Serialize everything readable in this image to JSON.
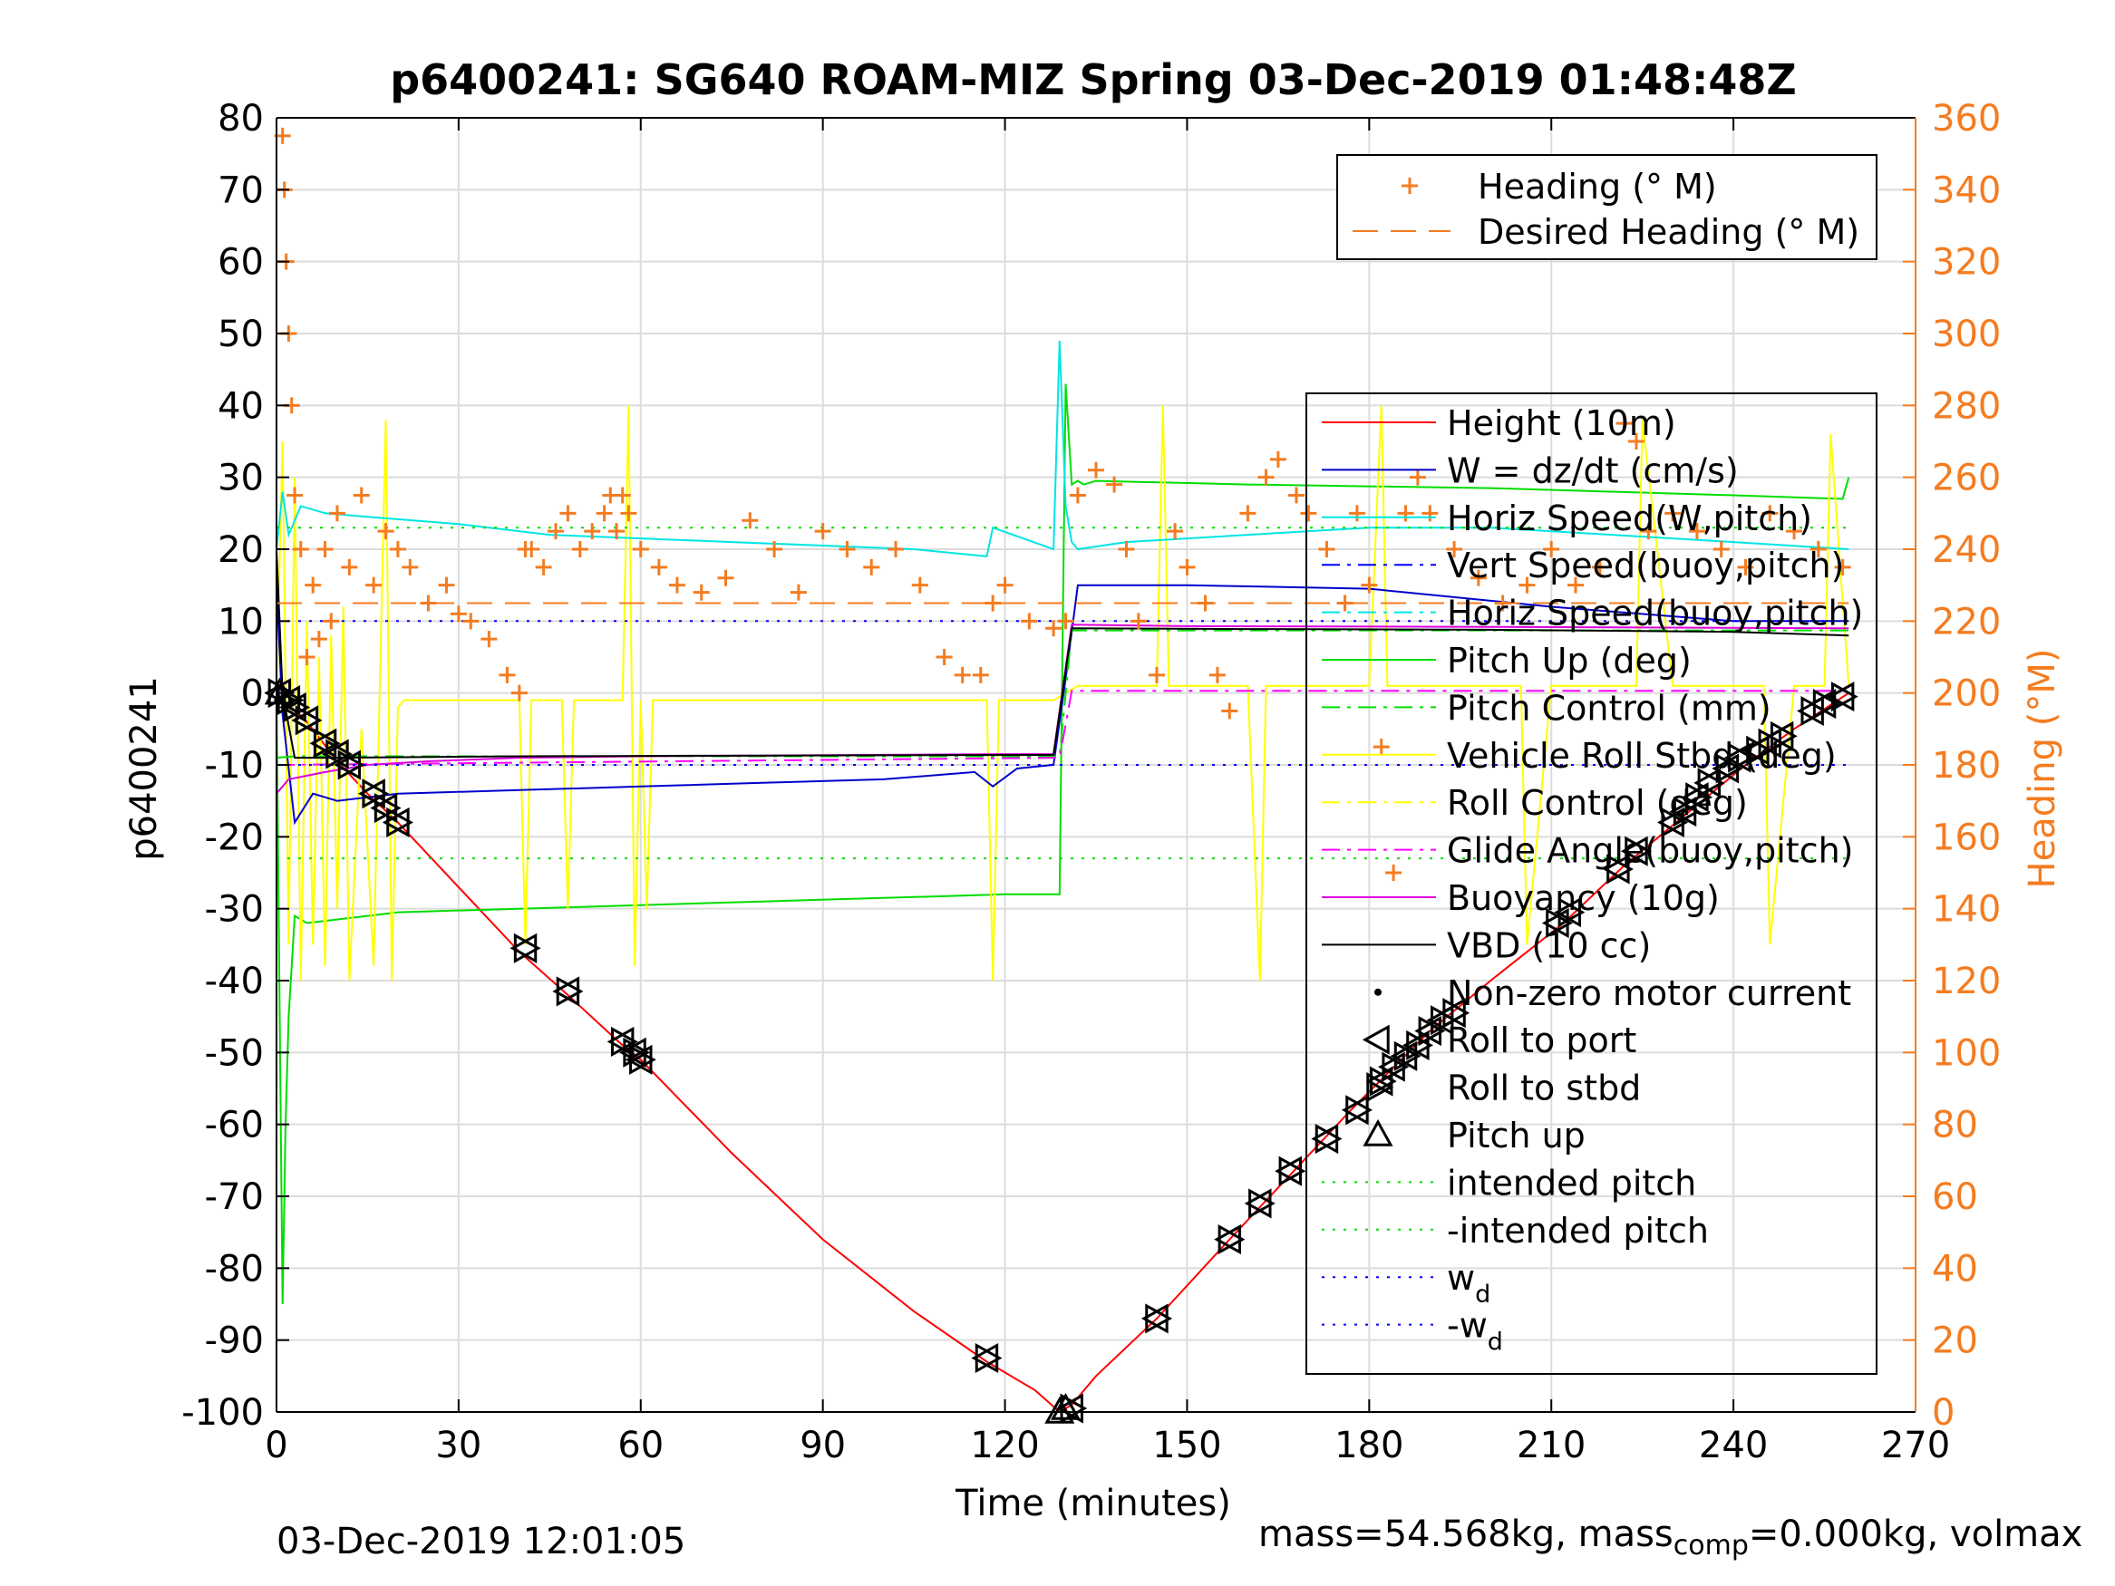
{
  "chart_data": {
    "type": "line",
    "title": "p6400241: SG640 ROAM-MIZ Spring 03-Dec-2019 01:48:48Z",
    "xlabel": "Time (minutes)",
    "ylabel": "p6400241",
    "y2label": "Heading (°M)",
    "xlim": [
      0,
      270
    ],
    "ylim": [
      -100,
      80
    ],
    "y2lim": [
      0,
      360
    ],
    "xticks": [
      0,
      30,
      60,
      90,
      120,
      150,
      180,
      210,
      240,
      270
    ],
    "yticks": [
      80,
      70,
      60,
      50,
      40,
      30,
      20,
      10,
      0,
      -10,
      -20,
      -30,
      -40,
      -50,
      -60,
      -70,
      -80,
      -90,
      -100
    ],
    "y2ticks": [
      360,
      340,
      320,
      300,
      280,
      260,
      240,
      220,
      200,
      180,
      160,
      140,
      120,
      100,
      80,
      60,
      40,
      20,
      0
    ],
    "grid": true,
    "colors": {
      "right_axis": "#f47c20",
      "height": "#ff0000",
      "w": "#0000cc",
      "horiz_speed": "#00e5e5",
      "vert_speed_buoy": "#0000ff",
      "pitch": "#00dd00",
      "roll": "#ffff00",
      "glide": "#ff00ff",
      "buoyancy": "#dd00dd",
      "vbd": "#000000"
    },
    "legend_top": [
      {
        "name": "Heading (° M)",
        "style": "plus",
        "color": "#f47c20"
      },
      {
        "name": "Desired Heading (° M)",
        "style": "dash",
        "color": "#f47c20"
      }
    ],
    "legend_main": [
      {
        "name": "Height (10m)",
        "style": "solid",
        "color": "#ff0000"
      },
      {
        "name": "W = dz/dt (cm/s)",
        "style": "solid",
        "color": "#0000cc"
      },
      {
        "name": "Horiz Speed(W,pitch)",
        "style": "solid",
        "color": "#00e5e5"
      },
      {
        "name": "Vert Speed(buoy,pitch)",
        "style": "dashdot",
        "color": "#0000ff"
      },
      {
        "name": "Horiz Speed(buoy,pitch)",
        "style": "dashdot",
        "color": "#00e5e5"
      },
      {
        "name": "Pitch Up (deg)",
        "style": "solid",
        "color": "#00dd00"
      },
      {
        "name": "Pitch Control (mm)",
        "style": "dashdot",
        "color": "#00dd00"
      },
      {
        "name": "Vehicle Roll Stbd (deg)",
        "style": "solid",
        "color": "#ffff00"
      },
      {
        "name": "Roll Control (deg)",
        "style": "dashdot",
        "color": "#ffff00"
      },
      {
        "name": "Glide Angle(buoy,pitch)",
        "style": "dashdot",
        "color": "#ff00ff"
      },
      {
        "name": "Buoyancy (10g)",
        "style": "solid",
        "color": "#dd00dd"
      },
      {
        "name": "VBD (10 cc)",
        "style": "solid",
        "color": "#000000"
      },
      {
        "name": "Non-zero motor current",
        "style": "dot",
        "color": "#000000"
      },
      {
        "name": "Roll to port",
        "style": "tri-left",
        "color": "#000000"
      },
      {
        "name": "Roll to stbd",
        "style": "tri-right",
        "color": "#000000"
      },
      {
        "name": "Pitch up",
        "style": "tri-up",
        "color": "#000000"
      },
      {
        "name": "intended pitch",
        "style": "dotted",
        "color": "#00dd00"
      },
      {
        "name": "-intended pitch",
        "style": "dotted",
        "color": "#00dd00"
      },
      {
        "name": "w",
        "sub": "d",
        "style": "dotted",
        "color": "#0000ff"
      },
      {
        "name": "-w",
        "sub": "d",
        "style": "dotted",
        "color": "#0000ff"
      }
    ],
    "series": [
      {
        "name": "Height (10m)",
        "axis": "left",
        "x": [
          0,
          5,
          10,
          15,
          20,
          30,
          40,
          48,
          57,
          60,
          75,
          90,
          105,
          117,
          125,
          129,
          131,
          135,
          145,
          157,
          167,
          177,
          190,
          200,
          212,
          222,
          232,
          242,
          250,
          259
        ],
        "y": [
          0,
          -4,
          -9.5,
          -14,
          -18,
          -27,
          -36,
          -42,
          -49,
          -51,
          -64,
          -76,
          -86,
          -93,
          -97,
          -100,
          -99,
          -95,
          -87,
          -76,
          -67,
          -58,
          -47,
          -40,
          -32,
          -24,
          -17,
          -10,
          -5,
          0
        ]
      },
      {
        "name": "W = dz/dt (cm/s)",
        "axis": "left",
        "x": [
          0,
          1,
          3,
          6,
          10,
          20,
          40,
          60,
          80,
          100,
          115,
          118,
          122,
          128,
          130,
          132,
          150,
          180,
          210,
          240,
          259
        ],
        "y": [
          15,
          -3,
          -18,
          -14,
          -15,
          -14,
          -13.5,
          -13,
          -12.5,
          -12,
          -11,
          -13,
          -10.5,
          -10,
          2,
          15,
          15,
          14.5,
          12,
          10,
          10
        ]
      },
      {
        "name": "Horiz Speed(W,pitch)",
        "axis": "left",
        "x": [
          0,
          1,
          2,
          4,
          8,
          15,
          30,
          45,
          60,
          75,
          90,
          105,
          117,
          118,
          128,
          129,
          130,
          131,
          132,
          140,
          160,
          180,
          200,
          220,
          240,
          259
        ],
        "y": [
          20,
          28,
          22,
          26,
          25,
          24.5,
          23.5,
          22,
          21.5,
          21,
          20.5,
          20,
          19,
          23,
          20,
          49,
          26,
          21,
          20,
          21,
          22,
          23,
          23,
          22,
          21,
          20
        ]
      },
      {
        "name": "Pitch Up (deg)",
        "axis": "left",
        "x": [
          0,
          1,
          1.5,
          2,
          3,
          5,
          20,
          40,
          60,
          80,
          100,
          120,
          128,
          129,
          130,
          131,
          132,
          133,
          135,
          160,
          200,
          240,
          258,
          259
        ],
        "y": [
          0,
          -85,
          -60,
          -45,
          -31,
          -32,
          -30.5,
          -30,
          -29.5,
          -29,
          -28.5,
          -28,
          -28,
          -28,
          43,
          29,
          29.5,
          29,
          29.5,
          29,
          28.5,
          27.5,
          27,
          30
        ]
      },
      {
        "name": "Pitch Control (mm)",
        "axis": "left",
        "x": [
          0,
          3,
          129,
          131,
          259
        ],
        "y": [
          -9,
          -8.8,
          -8.8,
          8.7,
          8.7
        ]
      },
      {
        "name": "Vehicle Roll Stbd (deg)",
        "axis": "left",
        "x": [
          0,
          1,
          2,
          3,
          4,
          5,
          6,
          7,
          8,
          9,
          10,
          11,
          12,
          14,
          16,
          18,
          19,
          20,
          21,
          22,
          30,
          40,
          41,
          42,
          47,
          48,
          49,
          57,
          58,
          59,
          60,
          61,
          62,
          90,
          117,
          118,
          119,
          128,
          130,
          132,
          145,
          146,
          147,
          160,
          162,
          163,
          170,
          180,
          182,
          183,
          190,
          200,
          205,
          206,
          210,
          220,
          224,
          225,
          230,
          240,
          245,
          246,
          250,
          255,
          256,
          259
        ],
        "y": [
          0,
          35,
          -35,
          30,
          -40,
          10,
          -35,
          5,
          -38,
          8,
          -30,
          12,
          -40,
          -5,
          -38,
          38,
          -40,
          -2,
          -1,
          -1,
          -1,
          -1,
          -35,
          -1,
          -1,
          -30,
          -1,
          -1,
          40,
          -38,
          -1,
          -30,
          -1,
          -1,
          -1,
          -40,
          -1,
          -1,
          0,
          1,
          1,
          40,
          1,
          1,
          -40,
          1,
          1,
          1,
          40,
          1,
          1,
          1,
          1,
          -35,
          1,
          1,
          1,
          38,
          1,
          1,
          1,
          -35,
          1,
          1,
          36,
          1
        ]
      },
      {
        "name": "Glide Angle(buoy,pitch)",
        "axis": "left",
        "x": [
          0,
          129,
          131,
          259
        ],
        "y": [
          -10,
          -9,
          0.3,
          0.3
        ]
      },
      {
        "name": "Buoyancy (10g)",
        "axis": "left",
        "x": [
          0,
          2,
          8,
          15,
          25,
          40,
          60,
          80,
          100,
          120,
          128,
          131,
          150,
          200,
          259
        ],
        "y": [
          -14,
          -12,
          -11,
          -10,
          -9.5,
          -9,
          -8.8,
          -8.7,
          -8.6,
          -8.5,
          -8.5,
          9.5,
          9.3,
          9.2,
          9
        ]
      },
      {
        "name": "VBD (10 cc)",
        "axis": "left",
        "x": [
          0,
          1,
          3,
          10,
          40,
          80,
          128,
          131,
          160,
          200,
          240,
          259
        ],
        "y": [
          20,
          0,
          -9,
          -9,
          -8.8,
          -8.7,
          -8.6,
          9,
          8.9,
          8.8,
          8.5,
          8
        ]
      },
      {
        "name": "Desired Heading (° M)",
        "axis": "right",
        "x": [
          0,
          259
        ],
        "y": [
          225,
          225
        ]
      },
      {
        "name": "Heading (° M)",
        "axis": "right",
        "x": [
          1,
          1.3,
          1.6,
          2,
          2.5,
          3,
          4,
          5,
          6,
          7,
          8,
          9,
          10,
          12,
          14,
          16,
          18,
          20,
          22,
          25,
          28,
          30,
          32,
          35,
          38,
          40,
          41,
          42,
          44,
          46,
          48,
          50,
          52,
          54,
          55,
          56,
          57,
          58,
          60,
          63,
          66,
          70,
          74,
          78,
          82,
          86,
          90,
          94,
          98,
          102,
          106,
          110,
          113,
          116,
          118,
          120,
          124,
          128,
          130,
          132,
          135,
          138,
          140,
          142,
          145,
          148,
          150,
          153,
          155,
          157,
          160,
          163,
          165,
          168,
          170,
          173,
          176,
          178,
          180,
          182,
          184,
          186,
          188,
          190,
          194,
          198,
          202,
          206,
          210,
          214,
          218,
          222,
          224,
          226,
          230,
          234,
          238,
          242,
          246,
          250,
          254,
          258
        ],
        "y": [
          355,
          340,
          320,
          300,
          280,
          255,
          240,
          210,
          230,
          215,
          240,
          220,
          250,
          235,
          255,
          230,
          245,
          240,
          235,
          225,
          230,
          222,
          220,
          215,
          205,
          200,
          240,
          240,
          235,
          245,
          250,
          240,
          245,
          250,
          255,
          245,
          255,
          250,
          240,
          235,
          230,
          228,
          232,
          248,
          240,
          228,
          245,
          240,
          235,
          240,
          230,
          210,
          205,
          205,
          225,
          230,
          220,
          218,
          220,
          255,
          262,
          258,
          240,
          220,
          205,
          245,
          235,
          225,
          205,
          195,
          250,
          260,
          265,
          255,
          250,
          240,
          225,
          250,
          230,
          185,
          150,
          250,
          260,
          250,
          240,
          232,
          225,
          230,
          240,
          230,
          235,
          275,
          270,
          245,
          250,
          245,
          240,
          235,
          250,
          245,
          240,
          235
        ]
      },
      {
        "name": "intended pitch",
        "axis": "left",
        "x": [
          0,
          259
        ],
        "y": [
          23,
          23
        ]
      },
      {
        "name": "-intended pitch",
        "axis": "left",
        "x": [
          0,
          259
        ],
        "y": [
          -23,
          -23
        ]
      },
      {
        "name": "w",
        "axis": "left",
        "x": [
          0,
          259
        ],
        "y": [
          10,
          10
        ]
      },
      {
        "name": "-w",
        "axis": "left",
        "x": [
          0,
          259
        ],
        "y": [
          -10,
          -10
        ]
      }
    ],
    "markers": {
      "roll_pairs": [
        [
          0.5,
          0
        ],
        [
          2,
          -1
        ],
        [
          3,
          -2
        ],
        [
          5,
          -3.8
        ],
        [
          8,
          -7
        ],
        [
          10,
          -8.5
        ],
        [
          12,
          -10
        ],
        [
          16,
          -14
        ],
        [
          18,
          -16
        ],
        [
          20,
          -18
        ],
        [
          41,
          -35.5
        ],
        [
          48,
          -41.5
        ],
        [
          57,
          -48.5
        ],
        [
          59,
          -50
        ],
        [
          60,
          -51
        ],
        [
          117,
          -92.5
        ],
        [
          131,
          -99.5
        ],
        [
          145,
          -87
        ],
        [
          157,
          -76
        ],
        [
          162,
          -71
        ],
        [
          167,
          -66.5
        ],
        [
          173,
          -62
        ],
        [
          178,
          -58
        ],
        [
          182,
          -54
        ],
        [
          184,
          -52
        ],
        [
          186,
          -50.5
        ],
        [
          188,
          -49
        ],
        [
          190,
          -47
        ],
        [
          192,
          -45.5
        ],
        [
          194,
          -44.5
        ],
        [
          211,
          -32
        ],
        [
          213,
          -30.5
        ],
        [
          221,
          -24.5
        ],
        [
          224,
          -22
        ],
        [
          230,
          -18
        ],
        [
          232,
          -16.5
        ],
        [
          234,
          -14.5
        ],
        [
          236,
          -12.5
        ],
        [
          239,
          -10.5
        ],
        [
          241,
          -9
        ],
        [
          244,
          -8
        ],
        [
          246,
          -7
        ],
        [
          248,
          -6
        ],
        [
          253,
          -2.5
        ],
        [
          255,
          -1.5
        ],
        [
          258,
          -0.5
        ]
      ],
      "pitch_up": [
        [
          0.5,
          0
        ],
        [
          129,
          -100
        ],
        [
          130,
          -99.5
        ]
      ],
      "legend_marker_left_arrow": [
        181,
        -48
      ]
    }
  },
  "footer": {
    "date": "03-Dec-2019 12:01:05",
    "mass_prefix": "mass=54.568kg, mass",
    "mass_sub": "comp",
    "mass_suffix": "=0.000kg, volmax"
  }
}
